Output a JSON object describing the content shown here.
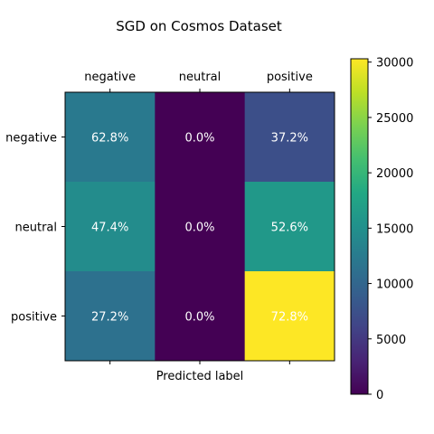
{
  "chart_data": {
    "type": "heatmap",
    "title": "SGD on Cosmos Dataset",
    "xlabel": "Predicted label",
    "ylabel": "",
    "x_categories": [
      "negative",
      "neutral",
      "positive"
    ],
    "y_categories": [
      "negative",
      "neutral",
      "positive"
    ],
    "cell_labels": [
      [
        "62.8%",
        "0.0%",
        "37.2%"
      ],
      [
        "47.4%",
        "0.0%",
        "52.6%"
      ],
      [
        "27.2%",
        "0.0%",
        "72.8%"
      ]
    ],
    "values": [
      [
        12300,
        0,
        7300
      ],
      [
        14500,
        0,
        16100
      ],
      [
        11300,
        0,
        30300
      ]
    ],
    "colorbar": {
      "colormap": "viridis",
      "range": [
        0,
        30300
      ],
      "ticks": [
        0,
        5000,
        10000,
        15000,
        20000,
        25000,
        30000
      ],
      "tick_labels": [
        "0",
        "5000",
        "10000",
        "15000",
        "20000",
        "25000",
        "30000"
      ]
    },
    "x_tick_position": "top",
    "grid": false
  }
}
